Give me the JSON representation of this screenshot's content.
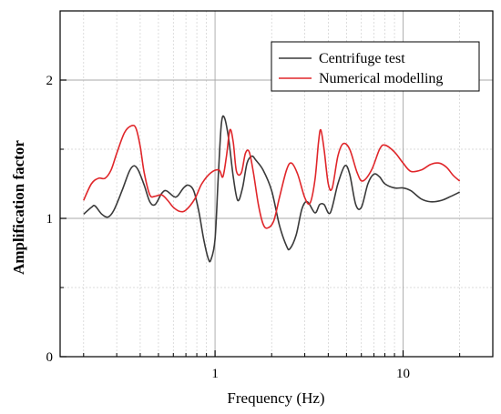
{
  "chart_data": {
    "type": "line",
    "xlabel": "Frequency (Hz)",
    "ylabel": "Amplification factor",
    "x_scale": "log",
    "xlim": [
      0.15,
      30
    ],
    "ylim": [
      0,
      2.5
    ],
    "x_ticks": [
      {
        "value": 1,
        "label": "1"
      },
      {
        "value": 10,
        "label": "10"
      }
    ],
    "y_ticks": [
      {
        "value": 0,
        "label": "0"
      },
      {
        "value": 1,
        "label": "1"
      },
      {
        "value": 2,
        "label": "2"
      }
    ],
    "grid": true,
    "legend_position": "top-right",
    "series": [
      {
        "name": "Centrifuge test",
        "color": "#3a3a3a",
        "points": [
          [
            0.2,
            1.03
          ],
          [
            0.22,
            1.08
          ],
          [
            0.23,
            1.09
          ],
          [
            0.25,
            1.03
          ],
          [
            0.27,
            1.01
          ],
          [
            0.29,
            1.06
          ],
          [
            0.32,
            1.2
          ],
          [
            0.35,
            1.34
          ],
          [
            0.37,
            1.38
          ],
          [
            0.39,
            1.35
          ],
          [
            0.42,
            1.24
          ],
          [
            0.45,
            1.12
          ],
          [
            0.48,
            1.1
          ],
          [
            0.52,
            1.18
          ],
          [
            0.55,
            1.2
          ],
          [
            0.6,
            1.16
          ],
          [
            0.63,
            1.16
          ],
          [
            0.68,
            1.22
          ],
          [
            0.72,
            1.24
          ],
          [
            0.77,
            1.2
          ],
          [
            0.82,
            1.05
          ],
          [
            0.87,
            0.85
          ],
          [
            0.92,
            0.71
          ],
          [
            0.95,
            0.7
          ],
          [
            1.0,
            0.85
          ],
          [
            1.04,
            1.3
          ],
          [
            1.08,
            1.68
          ],
          [
            1.12,
            1.73
          ],
          [
            1.18,
            1.58
          ],
          [
            1.25,
            1.3
          ],
          [
            1.32,
            1.13
          ],
          [
            1.4,
            1.22
          ],
          [
            1.48,
            1.4
          ],
          [
            1.57,
            1.45
          ],
          [
            1.65,
            1.42
          ],
          [
            1.8,
            1.35
          ],
          [
            2.0,
            1.2
          ],
          [
            2.2,
            0.95
          ],
          [
            2.4,
            0.8
          ],
          [
            2.5,
            0.78
          ],
          [
            2.7,
            0.88
          ],
          [
            2.9,
            1.07
          ],
          [
            3.1,
            1.12
          ],
          [
            3.4,
            1.04
          ],
          [
            3.6,
            1.1
          ],
          [
            3.8,
            1.1
          ],
          [
            4.1,
            1.04
          ],
          [
            4.5,
            1.25
          ],
          [
            4.9,
            1.38
          ],
          [
            5.2,
            1.32
          ],
          [
            5.6,
            1.1
          ],
          [
            6.0,
            1.08
          ],
          [
            6.5,
            1.25
          ],
          [
            7.0,
            1.32
          ],
          [
            7.5,
            1.3
          ],
          [
            8.0,
            1.25
          ],
          [
            9.0,
            1.22
          ],
          [
            10.0,
            1.22
          ],
          [
            11.0,
            1.2
          ],
          [
            12.5,
            1.14
          ],
          [
            14.0,
            1.12
          ],
          [
            16.0,
            1.13
          ],
          [
            18.0,
            1.16
          ],
          [
            20.0,
            1.19
          ]
        ]
      },
      {
        "name": "Numerical modelling",
        "color": "#e0262a",
        "points": [
          [
            0.2,
            1.13
          ],
          [
            0.22,
            1.25
          ],
          [
            0.24,
            1.29
          ],
          [
            0.26,
            1.29
          ],
          [
            0.28,
            1.35
          ],
          [
            0.3,
            1.47
          ],
          [
            0.33,
            1.62
          ],
          [
            0.36,
            1.67
          ],
          [
            0.38,
            1.65
          ],
          [
            0.4,
            1.52
          ],
          [
            0.42,
            1.33
          ],
          [
            0.45,
            1.17
          ],
          [
            0.48,
            1.16
          ],
          [
            0.52,
            1.17
          ],
          [
            0.56,
            1.13
          ],
          [
            0.6,
            1.08
          ],
          [
            0.65,
            1.05
          ],
          [
            0.7,
            1.06
          ],
          [
            0.78,
            1.14
          ],
          [
            0.85,
            1.25
          ],
          [
            0.95,
            1.33
          ],
          [
            1.05,
            1.35
          ],
          [
            1.1,
            1.3
          ],
          [
            1.15,
            1.45
          ],
          [
            1.2,
            1.64
          ],
          [
            1.25,
            1.55
          ],
          [
            1.3,
            1.34
          ],
          [
            1.38,
            1.33
          ],
          [
            1.45,
            1.47
          ],
          [
            1.52,
            1.48
          ],
          [
            1.6,
            1.33
          ],
          [
            1.7,
            1.1
          ],
          [
            1.8,
            0.96
          ],
          [
            1.9,
            0.93
          ],
          [
            2.05,
            0.98
          ],
          [
            2.2,
            1.15
          ],
          [
            2.4,
            1.35
          ],
          [
            2.55,
            1.4
          ],
          [
            2.75,
            1.32
          ],
          [
            3.0,
            1.15
          ],
          [
            3.2,
            1.11
          ],
          [
            3.4,
            1.28
          ],
          [
            3.55,
            1.55
          ],
          [
            3.65,
            1.64
          ],
          [
            3.8,
            1.5
          ],
          [
            4.0,
            1.25
          ],
          [
            4.2,
            1.22
          ],
          [
            4.5,
            1.45
          ],
          [
            4.8,
            1.54
          ],
          [
            5.2,
            1.5
          ],
          [
            5.7,
            1.33
          ],
          [
            6.1,
            1.27
          ],
          [
            6.8,
            1.35
          ],
          [
            7.5,
            1.5
          ],
          [
            8.0,
            1.53
          ],
          [
            9.0,
            1.48
          ],
          [
            10.0,
            1.4
          ],
          [
            11.0,
            1.34
          ],
          [
            12.5,
            1.35
          ],
          [
            14.0,
            1.39
          ],
          [
            15.5,
            1.4
          ],
          [
            17.0,
            1.37
          ],
          [
            18.5,
            1.31
          ],
          [
            20.0,
            1.27
          ]
        ]
      }
    ]
  }
}
